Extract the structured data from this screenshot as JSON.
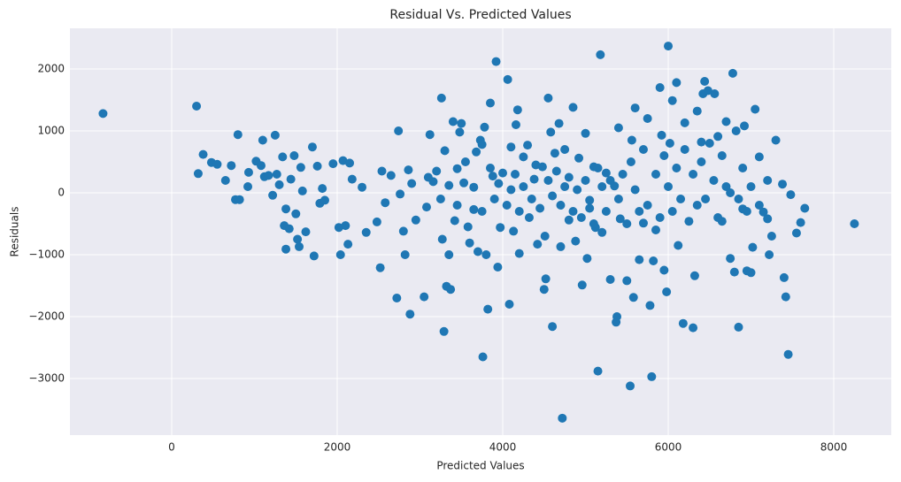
{
  "chart_data": {
    "type": "scatter",
    "title": "Residual Vs. Predicted Values",
    "x_label": "Predicted Values",
    "y_label": "Residuals",
    "color": "#1f77b4",
    "grid": true,
    "xlim": [
      -1230,
      8695
    ],
    "ylim": [
      -3914,
      2657
    ],
    "xticks": [
      0,
      2000,
      4000,
      6000,
      8000
    ],
    "yticks": [
      {
        "value": -3000,
        "label": "−3000"
      },
      {
        "value": -2000,
        "label": "−2000"
      },
      {
        "value": -1000,
        "label": "−1000"
      },
      0,
      1000,
      2000
    ],
    "x": [
      -830,
      300,
      320,
      380,
      480,
      550,
      650,
      720,
      770,
      800,
      820,
      920,
      930,
      1020,
      1080,
      1100,
      1120,
      1170,
      1220,
      1250,
      1270,
      1300,
      1340,
      1360,
      1380,
      1380,
      1420,
      1440,
      1480,
      1500,
      1520,
      1540,
      1560,
      1580,
      1620,
      1700,
      1720,
      1760,
      1790,
      1820,
      1850,
      1950,
      2020,
      2040,
      2070,
      2100,
      2130,
      2150,
      2180,
      2300,
      2350,
      2480,
      2520,
      2540,
      2580,
      2650,
      2720,
      2740,
      2760,
      2800,
      2820,
      2860,
      2880,
      2900,
      2950,
      3050,
      3080,
      3120,
      3160,
      3200,
      3260,
      3270,
      3290,
      3300,
      3320,
      3350,
      3370,
      3400,
      3420,
      3450,
      3480,
      3500,
      3530,
      3580,
      3600,
      3650,
      3680,
      3700,
      3730,
      3750,
      3760,
      3780,
      3800,
      3820,
      3850,
      3880,
      3920,
      3940,
      3970,
      4000,
      4060,
      4080,
      4100,
      4130,
      4160,
      4180,
      4200,
      4250,
      4300,
      4320,
      4380,
      4420,
      4480,
      4500,
      4510,
      4520,
      4550,
      4580,
      4600,
      4630,
      4680,
      4700,
      4720,
      4750,
      4800,
      4850,
      4880,
      4920,
      4960,
      5000,
      5020,
      5050,
      5100,
      5120,
      5150,
      5180,
      5200,
      5250,
      5300,
      5350,
      5370,
      5380,
      5400,
      5420,
      5500,
      5540,
      5560,
      5580,
      5600,
      5650,
      5700,
      5750,
      5780,
      5800,
      5820,
      5850,
      5900,
      5920,
      5950,
      5980,
      6000,
      6020,
      6050,
      6100,
      6120,
      6180,
      6200,
      6250,
      6300,
      6320,
      6350,
      6400,
      6420,
      6440,
      6480,
      6560,
      6600,
      6650,
      6700,
      6750,
      6780,
      6800,
      6820,
      6850,
      6900,
      6920,
      6950,
      7000,
      7020,
      7050,
      7100,
      7150,
      7200,
      7220,
      7250,
      7300,
      7380,
      7400,
      7420,
      7450,
      7480,
      7550,
      7600,
      7650,
      8250,
      3100,
      3250,
      3350,
      3450,
      3550,
      3650,
      3750,
      3850,
      3900,
      3950,
      4050,
      4100,
      4150,
      4200,
      4250,
      4350,
      4400,
      4450,
      4550,
      4600,
      4650,
      4700,
      4750,
      4800,
      4850,
      4900,
      4950,
      5000,
      5050,
      5100,
      5150,
      5200,
      5250,
      5300,
      5400,
      5450,
      5500,
      5550,
      5600,
      5650,
      5700,
      5750,
      5850,
      5900,
      5950,
      6000,
      6050,
      6100,
      6150,
      6200,
      6300,
      6350,
      6400,
      6450,
      6500,
      6550,
      6600,
      6650,
      6700,
      6750,
      6850,
      6900,
      6950,
      7000,
      7100,
      7200
    ],
    "values": [
      1280,
      1400,
      310,
      620,
      490,
      460,
      200,
      440,
      -110,
      940,
      -110,
      100,
      330,
      510,
      440,
      850,
      260,
      280,
      -40,
      930,
      300,
      130,
      580,
      -530,
      -260,
      -910,
      -580,
      220,
      600,
      -340,
      -750,
      -870,
      410,
      30,
      -630,
      740,
      -1020,
      430,
      -170,
      70,
      -120,
      470,
      -560,
      -1000,
      520,
      -530,
      -830,
      480,
      220,
      90,
      -640,
      -470,
      -1210,
      350,
      -160,
      280,
      -1700,
      1000,
      -20,
      -620,
      -1000,
      370,
      -1960,
      150,
      -440,
      -1680,
      -230,
      940,
      180,
      350,
      1530,
      -750,
      -2240,
      680,
      -1510,
      -1000,
      -1560,
      1150,
      -450,
      390,
      980,
      1120,
      160,
      -550,
      -810,
      -270,
      660,
      -950,
      850,
      780,
      -2650,
      1060,
      -1000,
      -1880,
      1450,
      270,
      2120,
      -1200,
      -560,
      320,
      1830,
      -1800,
      740,
      -620,
      1100,
      1340,
      -980,
      580,
      770,
      -400,
      220,
      -830,
      420,
      -1560,
      -700,
      -1390,
      1530,
      980,
      -2160,
      640,
      1120,
      -870,
      -3640,
      700,
      -440,
      1380,
      -780,
      560,
      -1490,
      960,
      -1060,
      -120,
      420,
      -560,
      -2880,
      2230,
      -640,
      320,
      -1400,
      110,
      -2090,
      -2000,
      1050,
      -420,
      -1420,
      -3120,
      850,
      -1690,
      1370,
      -1080,
      -490,
      1200,
      -1820,
      -2970,
      -1100,
      -600,
      1700,
      930,
      -1250,
      -1600,
      2370,
      800,
      1490,
      1780,
      -850,
      -2110,
      1130,
      -460,
      -2180,
      -1340,
      1320,
      820,
      1600,
      1800,
      1650,
      1600,
      910,
      -460,
      1150,
      -1060,
      1930,
      -1280,
      1000,
      -2170,
      -260,
      1080,
      -1260,
      -1290,
      -880,
      1350,
      580,
      -310,
      -420,
      -1000,
      -700,
      850,
      140,
      -1370,
      -1680,
      -2610,
      -30,
      -650,
      -480,
      -250,
      -500,
      250,
      -100,
      120,
      -200,
      500,
      90,
      -300,
      400,
      -100,
      150,
      -200,
      50,
      300,
      -300,
      100,
      -100,
      450,
      -250,
      200,
      -50,
      350,
      -200,
      100,
      250,
      -300,
      50,
      -400,
      200,
      -250,
      -500,
      400,
      100,
      -300,
      200,
      -100,
      300,
      -500,
      500,
      50,
      -300,
      700,
      -200,
      300,
      -400,
      600,
      100,
      -300,
      400,
      -100,
      700,
      300,
      -200,
      500,
      -100,
      800,
      200,
      -400,
      600,
      100,
      0,
      -100,
      400,
      -300,
      100,
      -200,
      200
    ]
  }
}
